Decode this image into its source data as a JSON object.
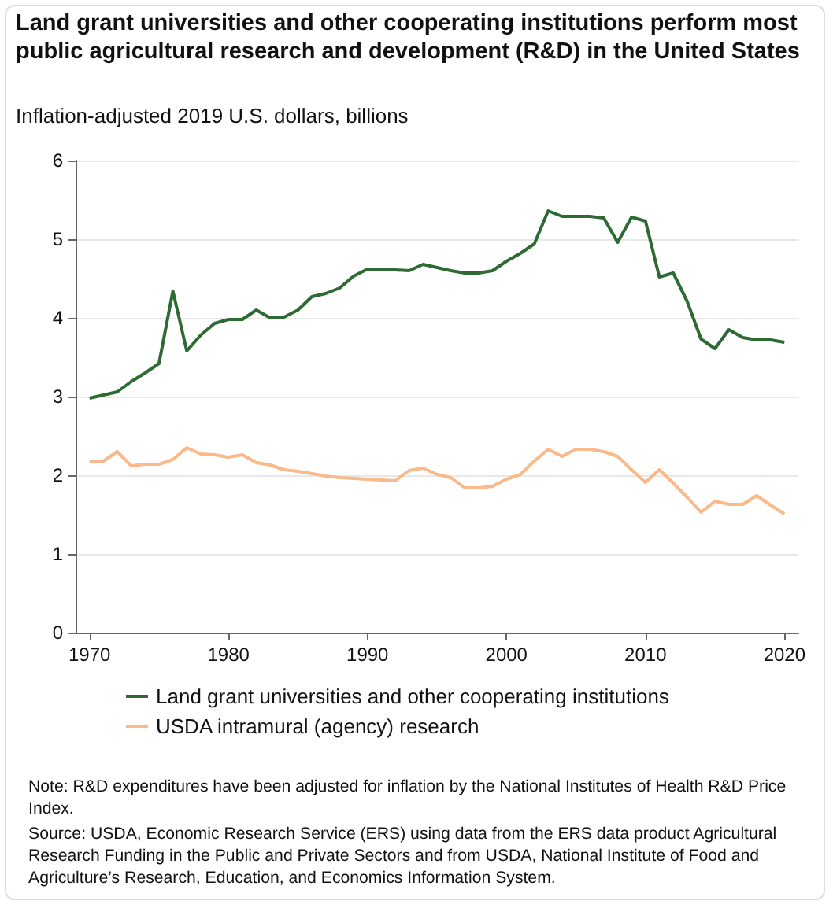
{
  "chart_data": {
    "type": "line",
    "title": "Land grant universities and other cooperating institutions perform most public agricultural research and development (R&D) in the United States",
    "ylabel": "Inflation-adjusted 2019 U.S. dollars, billions",
    "x": [
      1970,
      1971,
      1972,
      1973,
      1974,
      1975,
      1976,
      1977,
      1978,
      1979,
      1980,
      1981,
      1982,
      1983,
      1984,
      1985,
      1986,
      1987,
      1988,
      1989,
      1990,
      1991,
      1992,
      1993,
      1994,
      1995,
      1996,
      1997,
      1998,
      1999,
      2000,
      2001,
      2002,
      2003,
      2004,
      2005,
      2006,
      2007,
      2008,
      2009,
      2010,
      2011,
      2012,
      2013,
      2014,
      2015,
      2016,
      2017,
      2018,
      2019,
      2020
    ],
    "series": [
      {
        "name": "Land grant universities and other cooperating institutions",
        "color": "#2e6b34",
        "values": [
          2.98,
          3.02,
          3.06,
          3.19,
          3.3,
          3.42,
          4.34,
          3.58,
          3.78,
          3.93,
          3.98,
          3.98,
          4.1,
          4.0,
          4.01,
          4.1,
          4.27,
          4.31,
          4.38,
          4.53,
          4.62,
          4.62,
          4.61,
          4.6,
          4.68,
          4.64,
          4.6,
          4.57,
          4.57,
          4.6,
          4.72,
          4.82,
          4.94,
          5.36,
          5.29,
          5.29,
          5.29,
          5.27,
          4.96,
          5.28,
          5.23,
          4.52,
          4.57,
          4.21,
          3.73,
          3.61,
          3.85,
          3.75,
          3.72,
          3.72,
          3.69
        ]
      },
      {
        "name": "USDA intramural (agency) research",
        "color": "#f9b98a",
        "values": [
          2.18,
          2.18,
          2.3,
          2.12,
          2.14,
          2.14,
          2.2,
          2.35,
          2.27,
          2.26,
          2.23,
          2.26,
          2.16,
          2.13,
          2.07,
          2.05,
          2.02,
          1.99,
          1.97,
          1.96,
          1.95,
          1.94,
          1.93,
          2.06,
          2.09,
          2.01,
          1.97,
          1.84,
          1.84,
          1.86,
          1.95,
          2.01,
          2.18,
          2.33,
          2.24,
          2.33,
          2.33,
          2.3,
          2.24,
          2.07,
          1.91,
          2.07,
          1.9,
          1.72,
          1.53,
          1.67,
          1.63,
          1.63,
          1.74,
          1.62,
          1.51
        ]
      }
    ],
    "xlim": [
      1969,
      2021
    ],
    "xticks": [
      1970,
      1980,
      1990,
      2000,
      2010,
      2020
    ],
    "ylim": [
      0,
      6
    ],
    "yticks": [
      0,
      1,
      2,
      3,
      4,
      5,
      6
    ],
    "grid": "y",
    "legend": "bottom",
    "marker": "none",
    "line_style": "solid",
    "annotations": [
      "Note: R&D expenditures have been adjusted for inflation by the National Institutes of Health R&D Price Index.",
      "Source: USDA, Economic Research Service (ERS) using data from the ERS data product Agricultural Research Funding in the Public and Private Sectors and from USDA, National Institute of Food and Agriculture’s Research, Education, and Economics Information System."
    ]
  }
}
